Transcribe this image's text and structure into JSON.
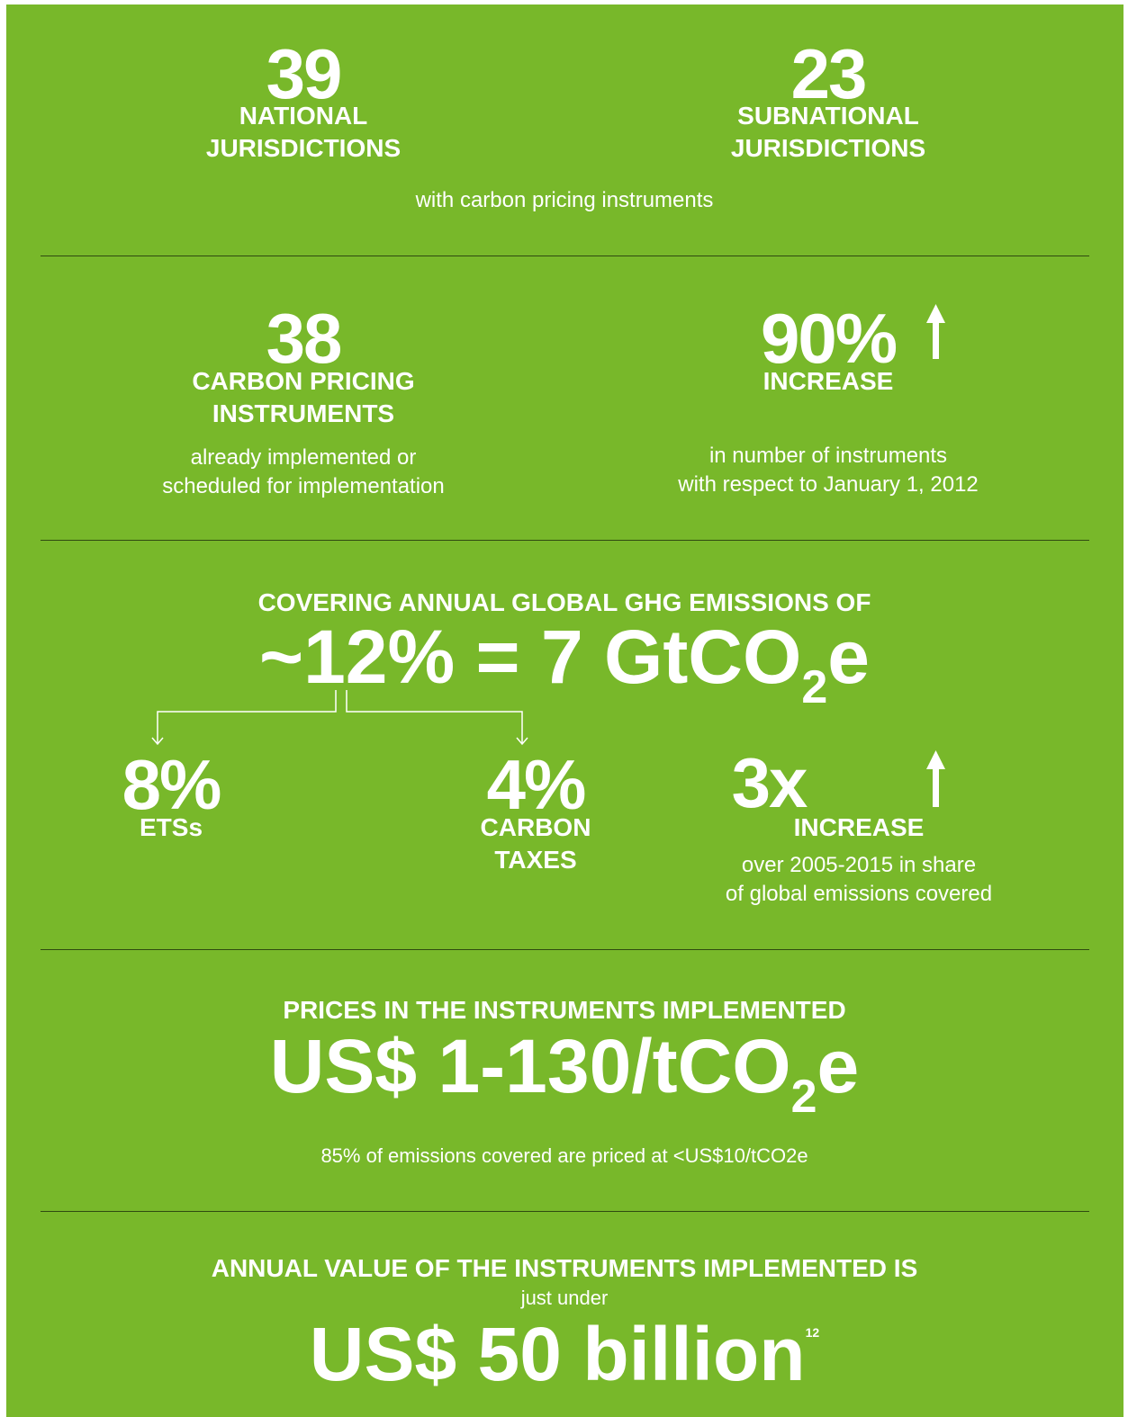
{
  "national": {
    "number": "39",
    "label": [
      "NATIONAL",
      "JURISDICTIONS"
    ]
  },
  "subnational": {
    "number": "23",
    "label": [
      "SUBNATIONAL",
      "JURISDICTIONS"
    ]
  },
  "jurisdictions_note": "with carbon pricing instruments",
  "instruments": {
    "number": "38",
    "label": [
      "CARBON PRICING",
      "INSTRUMENTS"
    ],
    "note": [
      "already implemented or",
      "scheduled for implementation"
    ]
  },
  "increase": {
    "number": "90%",
    "label": "INCREASE",
    "note": [
      "in number of instruments",
      "with respect to January 1, 2012"
    ]
  },
  "coverage": {
    "heading": "COVERING ANNUAL GLOBAL GHG EMISSIONS OF",
    "value": "~12% = 7 GtCO",
    "subscript": "2",
    "suffix": "e"
  },
  "ets": {
    "number": "8%",
    "label": "ETSs"
  },
  "taxes": {
    "number": "4%",
    "label": [
      "CARBON",
      "TAXES"
    ]
  },
  "growth": {
    "number": "3x",
    "label": "INCREASE",
    "note": [
      "over 2005-2015 in share",
      "of global emissions covered"
    ]
  },
  "prices": {
    "heading": "PRICES IN THE INSTRUMENTS IMPLEMENTED",
    "value": "US$ 1-130/tCO",
    "subscript": "2",
    "suffix": "e",
    "note": "85% of emissions covered are priced at <US$10/tCO2e"
  },
  "annual": {
    "heading": "ANNUAL VALUE OF THE INSTRUMENTS IMPLEMENTED IS",
    "qualifier": "just under",
    "value": "US$ 50 billion",
    "footnote": "12"
  }
}
